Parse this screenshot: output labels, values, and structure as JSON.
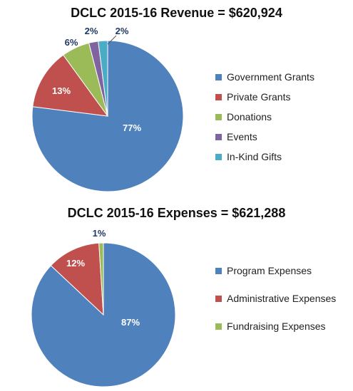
{
  "chart_data": [
    {
      "type": "pie",
      "title": "DCLC 2015-16 Revenue = $620,924",
      "categories": [
        "Government Grants",
        "Private Grants",
        "Donations",
        "Events",
        "In-Kind Gifts"
      ],
      "values": [
        77,
        13,
        6,
        2,
        2
      ],
      "unit": "%",
      "data_labels": [
        "77%",
        "13%",
        "6%",
        "2%",
        "2%"
      ],
      "colors": [
        "#4f81bd",
        "#c0504d",
        "#9bbb59",
        "#8064a2",
        "#4bacc6"
      ],
      "legend_position": "right"
    },
    {
      "type": "pie",
      "title": "DCLC 2015-16 Expenses = $621,288",
      "categories": [
        "Program Expenses",
        "Administrative Expenses",
        "Fundraising Expenses"
      ],
      "values": [
        87,
        12,
        1
      ],
      "unit": "%",
      "data_labels": [
        "87%",
        "12%",
        "1%"
      ],
      "colors": [
        "#4f81bd",
        "#c0504d",
        "#9bbb59"
      ],
      "legend_position": "right"
    }
  ]
}
